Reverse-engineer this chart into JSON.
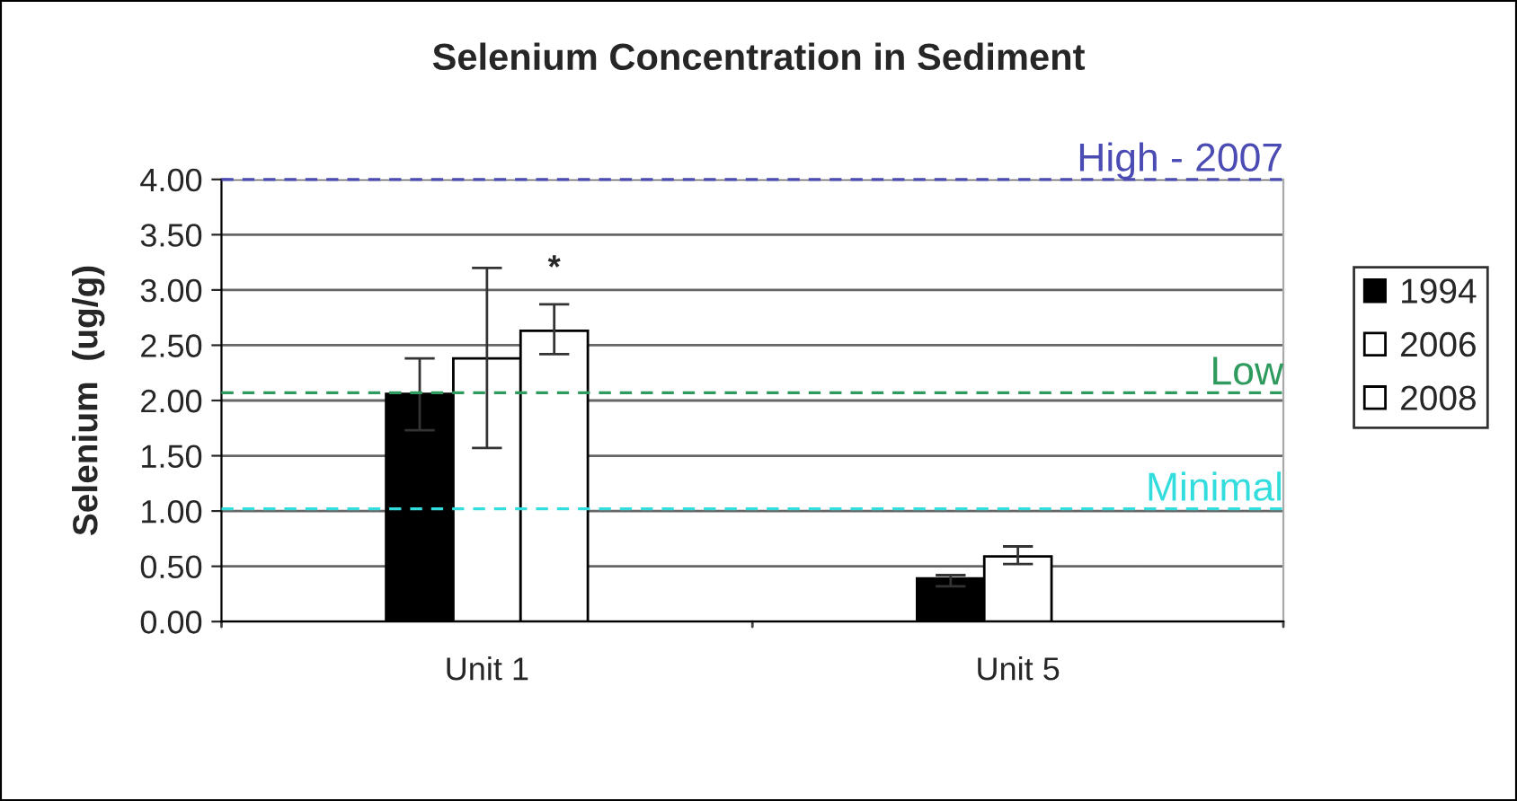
{
  "chart_data": {
    "type": "bar",
    "title": "Selenium Concentration in Sediment",
    "ylabel": "Selenium  (ug/g)",
    "categories": [
      "Unit 1",
      "Unit 5"
    ],
    "series": [
      {
        "name": "1994",
        "color": "#000000",
        "values": [
          2.06,
          0.39
        ],
        "errors": [
          [
            1.73,
            2.38
          ],
          [
            0.32,
            0.42
          ]
        ]
      },
      {
        "name": "2006",
        "color": "#ffffff",
        "values": [
          2.38,
          0.59
        ],
        "errors": [
          [
            1.57,
            3.2
          ],
          [
            0.52,
            0.68
          ]
        ]
      },
      {
        "name": "2008",
        "color": "#ffffff",
        "values": [
          2.63,
          null
        ],
        "errors": [
          [
            2.42,
            2.87
          ],
          null
        ]
      }
    ],
    "ylim": [
      0,
      4
    ],
    "yticks": [
      {
        "value": 0,
        "label": "0.00"
      },
      {
        "value": 0.5,
        "label": "0.50"
      },
      {
        "value": 1,
        "label": "1.00"
      },
      {
        "value": 1.5,
        "label": "1.50"
      },
      {
        "value": 2,
        "label": "2.00"
      },
      {
        "value": 2.5,
        "label": "2.50"
      },
      {
        "value": 3,
        "label": "3.00"
      },
      {
        "value": 3.5,
        "label": "3.50"
      },
      {
        "value": 4,
        "label": "4.00"
      }
    ],
    "ref_lines": [
      {
        "axis": "y",
        "value": 4.0,
        "label": "High - 2007",
        "color": "#4b4bb4",
        "line_style": "dashed"
      },
      {
        "axis": "y",
        "value": 2.07,
        "label": "Low",
        "color": "#2e9a5e",
        "line_style": "dashed"
      },
      {
        "axis": "y",
        "value": 1.02,
        "label": "Minimal",
        "color": "#33dddd",
        "line_style": "dashed"
      }
    ],
    "annotations": [
      "*"
    ],
    "grid": "y",
    "legend": "right"
  }
}
